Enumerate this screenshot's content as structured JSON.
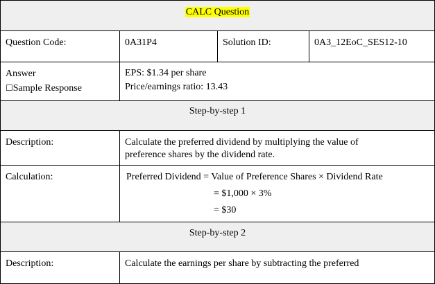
{
  "header": {
    "title": "CALC Question"
  },
  "meta": {
    "question_code_label": "Question Code:",
    "question_code_value": "0A31P4",
    "solution_id_label": "Solution ID:",
    "solution_id_value": "0A3_12EoC_SES12-10"
  },
  "answer": {
    "label": "Answer",
    "sample_icon": "☐",
    "sample_label": "Sample Response",
    "line1": "EPS: $1.34 per share",
    "line2": "Price/earnings ratio: 13.43"
  },
  "step1": {
    "title": "Step-by-step 1",
    "description_label": "Description:",
    "description_line1": "Calculate the preferred dividend by multiplying the value of",
    "description_line2": "preference shares by the dividend rate.",
    "calculation_label": "Calculation:",
    "calc_line1": "Preferred Dividend = Value of Preference Shares × Dividend Rate",
    "calc_line2": "= $1,000 × 3%",
    "calc_line3": "= $30"
  },
  "step2": {
    "title": "Step-by-step 2",
    "description_label": "Description:",
    "description_line1": "Calculate the earnings per share by subtracting the preferred"
  }
}
